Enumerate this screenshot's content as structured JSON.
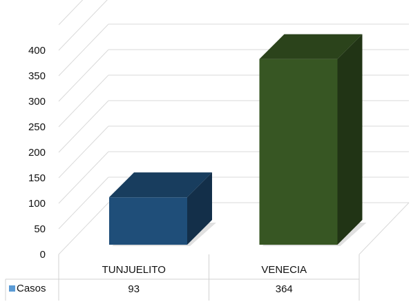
{
  "chart_data": {
    "type": "bar",
    "style": "3d-column",
    "categories": [
      "TUNJUELITO",
      "VENECIA"
    ],
    "series": [
      {
        "name": "Casos",
        "values": [
          93,
          364
        ],
        "bar_colors": [
          "#1F4E79",
          "#375623"
        ],
        "legend_color": "#5B9BD5"
      }
    ],
    "yticks": [
      "0",
      "50",
      "100",
      "150",
      "200",
      "250",
      "300",
      "350",
      "400"
    ],
    "ylim": [
      0,
      450
    ],
    "grid": true,
    "legend": "data-table",
    "data_table": {
      "series_label": "Casos",
      "values_text": [
        "93",
        "364"
      ]
    }
  }
}
